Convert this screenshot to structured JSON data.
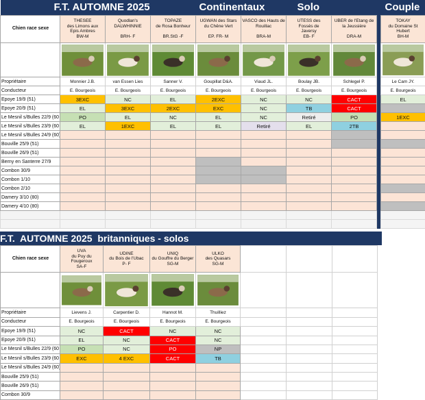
{
  "top": {
    "title": "F.T. AUTOMNE 2025",
    "group_label": "Continentaux",
    "solo_label": "Solo",
    "couple_label": "Couple",
    "row_header": "Chien race sexe",
    "owner_label": "Propriétaire",
    "handler_label": "Conducteur",
    "dogs": [
      {
        "name": "THESEE\ndes Limons aux\nEpis Ambres\nBW-M",
        "owner": "Monnier J.B.",
        "handler": "E. Bourgeois"
      },
      {
        "name": "Quodlan's\nDALWHINNIE\n\nBRH- F",
        "owner": "van Essen Lies",
        "handler": "E. Bourgeois"
      },
      {
        "name": "TOPAZE\nde Rosa Bonheur\n\nBR.StG -F",
        "owner": "Sanner V.",
        "handler": "E. Bourgeois"
      },
      {
        "name": "UGWAN des Stars\ndu Chêne Vert\n\nEP. FR- M",
        "owner": "Goupillat D&A.",
        "handler": "E. Bourgeois"
      },
      {
        "name": "VASCO des Hauts de\nRouillac\n\nBRA-M",
        "owner": "Viaud JL.",
        "handler": "E. Bourgeois"
      },
      {
        "name": "UTESS des\nFossés de\nJaversy\nEB- F",
        "owner": "Boulay JB.",
        "handler": "E. Bourgeois"
      },
      {
        "name": "UBER de l'Etang de\nla Jeussière\n\nDRA-M",
        "owner": "Schlegel P.",
        "handler": "E. Bourgeois"
      },
      {
        "name": "TOKAY\ndu Domaine St\nHubert\nBH-M",
        "owner": "Le Cam JY.",
        "handler": "E. Bourgeois"
      }
    ],
    "events": [
      {
        "label": "Epoye 19/9  (51)",
        "results": [
          {
            "text": "3EXC",
            "color": "#ffc000"
          },
          {
            "text": "NC",
            "color": "#e2efda"
          },
          {
            "text": "EL",
            "color": "#e2efda"
          },
          {
            "text": "2EXC",
            "color": "#ffc000"
          },
          {
            "text": "NC",
            "color": "#e2efda"
          },
          {
            "text": "NC",
            "color": "#e2efda"
          },
          {
            "text": "CACT",
            "color": "#ff0000",
            "font_color": "#ffffff"
          },
          {
            "text": "EL",
            "color": "#e2efda"
          }
        ]
      },
      {
        "label": "Epoye  20/9 (51)",
        "results": [
          {
            "text": "EL",
            "color": "#e2efda"
          },
          {
            "text": "3EXC",
            "color": "#ffc000"
          },
          {
            "text": "2EXC",
            "color": "#ffc000"
          },
          {
            "text": "EXC",
            "color": "#ffc000"
          },
          {
            "text": "NC",
            "color": "#e2efda"
          },
          {
            "text": "TB",
            "color": "#8fd0e0"
          },
          {
            "text": "CACT",
            "color": "#ff0000",
            "font_color": "#ffffff"
          },
          {
            "color": "#bfbfbf"
          }
        ]
      },
      {
        "label": "Le Mesnil s/Bulles 22/9 (60",
        "results": [
          {
            "text": "PO",
            "color": "#c6e0b4"
          },
          {
            "text": "EL",
            "color": "#e2efda"
          },
          {
            "text": "NC",
            "color": "#e2efda"
          },
          {
            "text": "EL",
            "color": "#e2efda"
          },
          {
            "text": "NC",
            "color": "#e2efda"
          },
          {
            "text": "Retiré",
            "color": "#ededed"
          },
          {
            "text": "PO",
            "color": "#c6e0b4"
          },
          {
            "text": "1EXC",
            "color": "#ffc000"
          }
        ]
      },
      {
        "label": "Le Mesnil s/Bulles 23/9 (60",
        "results": [
          {
            "text": "EL",
            "color": "#e2efda"
          },
          {
            "text": "1EXC",
            "color": "#ffc000"
          },
          {
            "text": "EL",
            "color": "#e2efda"
          },
          {
            "text": "EL",
            "color": "#e2efda"
          },
          {
            "text": "Retiré",
            "color": "#e4dfec"
          },
          {
            "text": "EL",
            "color": "#e2efda"
          },
          {
            "text": "2TB",
            "color": "#8fd0e0"
          },
          null
        ]
      },
      {
        "label": "Le Mesnil s/Bulles 24/9 (60)",
        "results": [
          null,
          null,
          null,
          null,
          null,
          null,
          {
            "color": "#bfbfbf"
          },
          null
        ]
      },
      {
        "label": "Bouville 25/9  (51)",
        "results": [
          null,
          null,
          null,
          null,
          null,
          null,
          {
            "color": "#bfbfbf"
          },
          {
            "color": "#bfbfbf"
          }
        ]
      },
      {
        "label": "Bouville 26/9  (51)",
        "results": []
      },
      {
        "label": "Berny en Santerre 27/9",
        "results": [
          null,
          null,
          null,
          {
            "color": "#bfbfbf"
          }
        ]
      },
      {
        "label": "Combon 30/9",
        "results": [
          null,
          null,
          null,
          {
            "color": "#bfbfbf"
          },
          {
            "color": "#bfbfbf"
          }
        ]
      },
      {
        "label": "Combon 1/10",
        "results": [
          null,
          null,
          null,
          {
            "color": "#bfbfbf"
          },
          {
            "color": "#bfbfbf"
          }
        ]
      },
      {
        "label": "Combon 2/10",
        "results": [
          null,
          null,
          null,
          null,
          null,
          null,
          null,
          {
            "color": "#bfbfbf"
          }
        ]
      },
      {
        "label": "Damery 3/10 (80)",
        "results": []
      },
      {
        "label": "Damery 4/10 (80)",
        "results": [
          null,
          null,
          null,
          null,
          null,
          null,
          null,
          {
            "color": "#bfbfbf"
          }
        ]
      }
    ]
  },
  "bottom": {
    "title": "F.T.  AUTOMNE 2025  britanniques - solos",
    "row_header": "Chien race sexe",
    "owner_label": "Propriétaire",
    "handler_label": "Conducteur",
    "dogs": [
      {
        "name": "UVA\ndu Puy du\nFougeroux\nSA-F",
        "owner": "Lievens J.",
        "handler": "E. Bourgeois"
      },
      {
        "name": "UDINE\ndu Bois de l'Ubac\nP- F",
        "owner": "Carpentier D.",
        "handler": "E. Bourgeois"
      },
      {
        "name": "UNIQ\ndu Gouffre du Berger\nSG-M",
        "owner": "Hannot M.",
        "handler": "E. Bourgeois"
      },
      {
        "name": "ULKO\ndes Quasars\nSG-M",
        "owner": "Thuilliez",
        "handler": "E. Bourgeois"
      }
    ],
    "events": [
      {
        "label": "Epoye 19/9  (51)",
        "results": [
          {
            "text": "NC",
            "color": "#e2efda"
          },
          {
            "text": "CACT",
            "color": "#ff0000",
            "font_color": "#ffffff"
          },
          {
            "text": "NC",
            "color": "#e2efda"
          },
          {
            "text": "NC",
            "color": "#e2efda"
          }
        ]
      },
      {
        "label": "Epoye  20/9 (51)",
        "results": [
          {
            "text": "EL",
            "color": "#e2efda"
          },
          {
            "text": "NC",
            "color": "#e2efda"
          },
          {
            "text": "CACT",
            "color": "#ff0000",
            "font_color": "#ffffff"
          },
          {
            "text": "NC",
            "color": "#e2efda"
          }
        ]
      },
      {
        "label": "Le Mesnil s/Bulles 22/9 (60",
        "results": [
          {
            "text": "PO",
            "color": "#c6e0b4"
          },
          {
            "text": "NC",
            "color": "#e2efda"
          },
          {
            "text": "PO",
            "color": "#ff0000",
            "font_color": "#ffffff"
          },
          {
            "text": "NP",
            "color": "#bfbfbf"
          }
        ]
      },
      {
        "label": "Le Mesnil s/Bulles 23/9 (60",
        "results": [
          {
            "text": "EXC",
            "color": "#ffc000"
          },
          {
            "text": "4 EXC",
            "color": "#ffc000"
          },
          {
            "text": "CACT",
            "color": "#ff0000",
            "font_color": "#ffffff"
          },
          {
            "text": "TB",
            "color": "#8fd0e0"
          }
        ]
      },
      {
        "label": "Le Mesnil s/Bulles 24/9 (60)",
        "results": []
      },
      {
        "label": "Bouville 25/9  (51)",
        "results": []
      },
      {
        "label": "Bouville 26/9  (51)",
        "results": []
      },
      {
        "label": "Combon 30/9",
        "results": []
      }
    ]
  }
}
